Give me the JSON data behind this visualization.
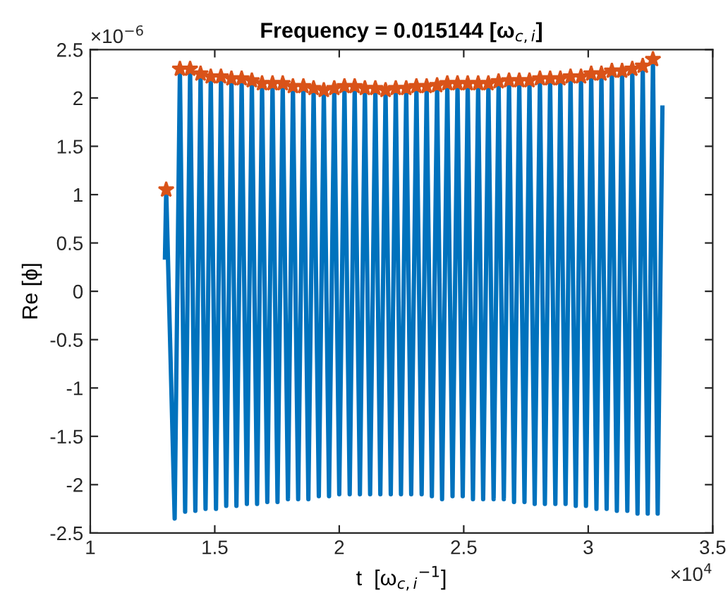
{
  "chart_data": {
    "type": "line",
    "title": "Frequency = 0.015144 [ω$_{c,i}$]",
    "xlabel": "t  [ω$_{c,i}$$^{−1}$]",
    "ylabel": "Re [ϕ]",
    "annotations": [
      "×10$^{−6}$",
      "×10$^{4}$"
    ],
    "xlim": [
      1,
      3.5
    ],
    "xticks": [
      1,
      1.5,
      2,
      2.5,
      3,
      3.5
    ],
    "ylim": [
      -2.5,
      2.5
    ],
    "yticks": [
      -2.5,
      -2,
      -1.5,
      -1,
      -0.5,
      0,
      0.5,
      1,
      1.5,
      2,
      2.5
    ],
    "grid": false,
    "legend": false,
    "series": [
      {
        "color": "#0072bd",
        "marker": "none",
        "line_style": "solid",
        "x": [
          1.3,
          1.305,
          1.339,
          1.36,
          1.381,
          1.401,
          1.422,
          1.443,
          1.463,
          1.484,
          1.505,
          1.525,
          1.546,
          1.567,
          1.587,
          1.608,
          1.629,
          1.649,
          1.67,
          1.69,
          1.711,
          1.732,
          1.752,
          1.773,
          1.794,
          1.814,
          1.835,
          1.856,
          1.876,
          1.897,
          1.918,
          1.938,
          1.959,
          1.98,
          2.0,
          2.021,
          2.042,
          2.062,
          2.083,
          2.103,
          2.124,
          2.145,
          2.165,
          2.186,
          2.207,
          2.227,
          2.248,
          2.269,
          2.289,
          2.31,
          2.331,
          2.351,
          2.372,
          2.393,
          2.413,
          2.434,
          2.455,
          2.475,
          2.496,
          2.516,
          2.537,
          2.558,
          2.578,
          2.599,
          2.62,
          2.64,
          2.661,
          2.682,
          2.702,
          2.723,
          2.744,
          2.764,
          2.785,
          2.806,
          2.826,
          2.847,
          2.868,
          2.888,
          2.909,
          2.929,
          2.95,
          2.971,
          2.991,
          3.012,
          3.033,
          3.053,
          3.074,
          3.095,
          3.115,
          3.136,
          3.157,
          3.177,
          3.198,
          3.219,
          3.239,
          3.26,
          3.279,
          3.298
        ],
        "values": [
          0.35,
          1.05,
          -2.35,
          2.3,
          -2.28,
          2.3,
          -2.27,
          2.25,
          -2.25,
          2.22,
          -2.25,
          2.22,
          -2.22,
          2.2,
          -2.22,
          2.2,
          -2.2,
          2.18,
          -2.2,
          2.15,
          -2.18,
          2.15,
          -2.18,
          2.15,
          -2.15,
          2.12,
          -2.15,
          2.12,
          -2.15,
          2.1,
          -2.12,
          2.08,
          -2.12,
          2.1,
          -2.1,
          2.12,
          -2.1,
          2.12,
          -2.1,
          2.1,
          -2.1,
          2.1,
          -2.1,
          2.08,
          -2.1,
          2.1,
          -2.1,
          2.1,
          -2.1,
          2.12,
          -2.1,
          2.12,
          -2.12,
          2.13,
          -2.15,
          2.15,
          -2.12,
          2.15,
          -2.12,
          2.15,
          -2.15,
          2.15,
          -2.15,
          2.15,
          -2.15,
          2.17,
          -2.15,
          2.18,
          -2.18,
          2.18,
          -2.18,
          2.18,
          -2.2,
          2.2,
          -2.2,
          2.2,
          -2.2,
          2.2,
          -2.2,
          2.22,
          -2.22,
          2.22,
          -2.22,
          2.25,
          -2.25,
          2.25,
          -2.25,
          2.28,
          -2.27,
          2.28,
          -2.27,
          2.3,
          -2.3,
          2.33,
          -2.3,
          2.4,
          -2.3,
          1.9
        ]
      },
      {
        "type": "scatter",
        "color": "#d95319",
        "marker": "star",
        "x": [
          1.305,
          1.36,
          1.401,
          1.443,
          1.484,
          1.525,
          1.567,
          1.608,
          1.649,
          1.69,
          1.732,
          1.773,
          1.814,
          1.856,
          1.897,
          1.938,
          1.98,
          2.021,
          2.062,
          2.103,
          2.145,
          2.186,
          2.227,
          2.269,
          2.31,
          2.351,
          2.393,
          2.434,
          2.475,
          2.516,
          2.558,
          2.599,
          2.64,
          2.682,
          2.723,
          2.764,
          2.806,
          2.847,
          2.888,
          2.929,
          2.971,
          3.012,
          3.053,
          3.095,
          3.136,
          3.177,
          3.219,
          3.26
        ],
        "values": [
          1.05,
          2.3,
          2.3,
          2.25,
          2.22,
          2.22,
          2.2,
          2.2,
          2.18,
          2.15,
          2.15,
          2.15,
          2.12,
          2.12,
          2.1,
          2.08,
          2.1,
          2.12,
          2.12,
          2.1,
          2.1,
          2.08,
          2.1,
          2.1,
          2.12,
          2.12,
          2.13,
          2.15,
          2.15,
          2.15,
          2.15,
          2.15,
          2.17,
          2.18,
          2.18,
          2.18,
          2.2,
          2.2,
          2.2,
          2.22,
          2.22,
          2.25,
          2.25,
          2.28,
          2.28,
          2.3,
          2.33,
          2.4
        ]
      }
    ]
  }
}
